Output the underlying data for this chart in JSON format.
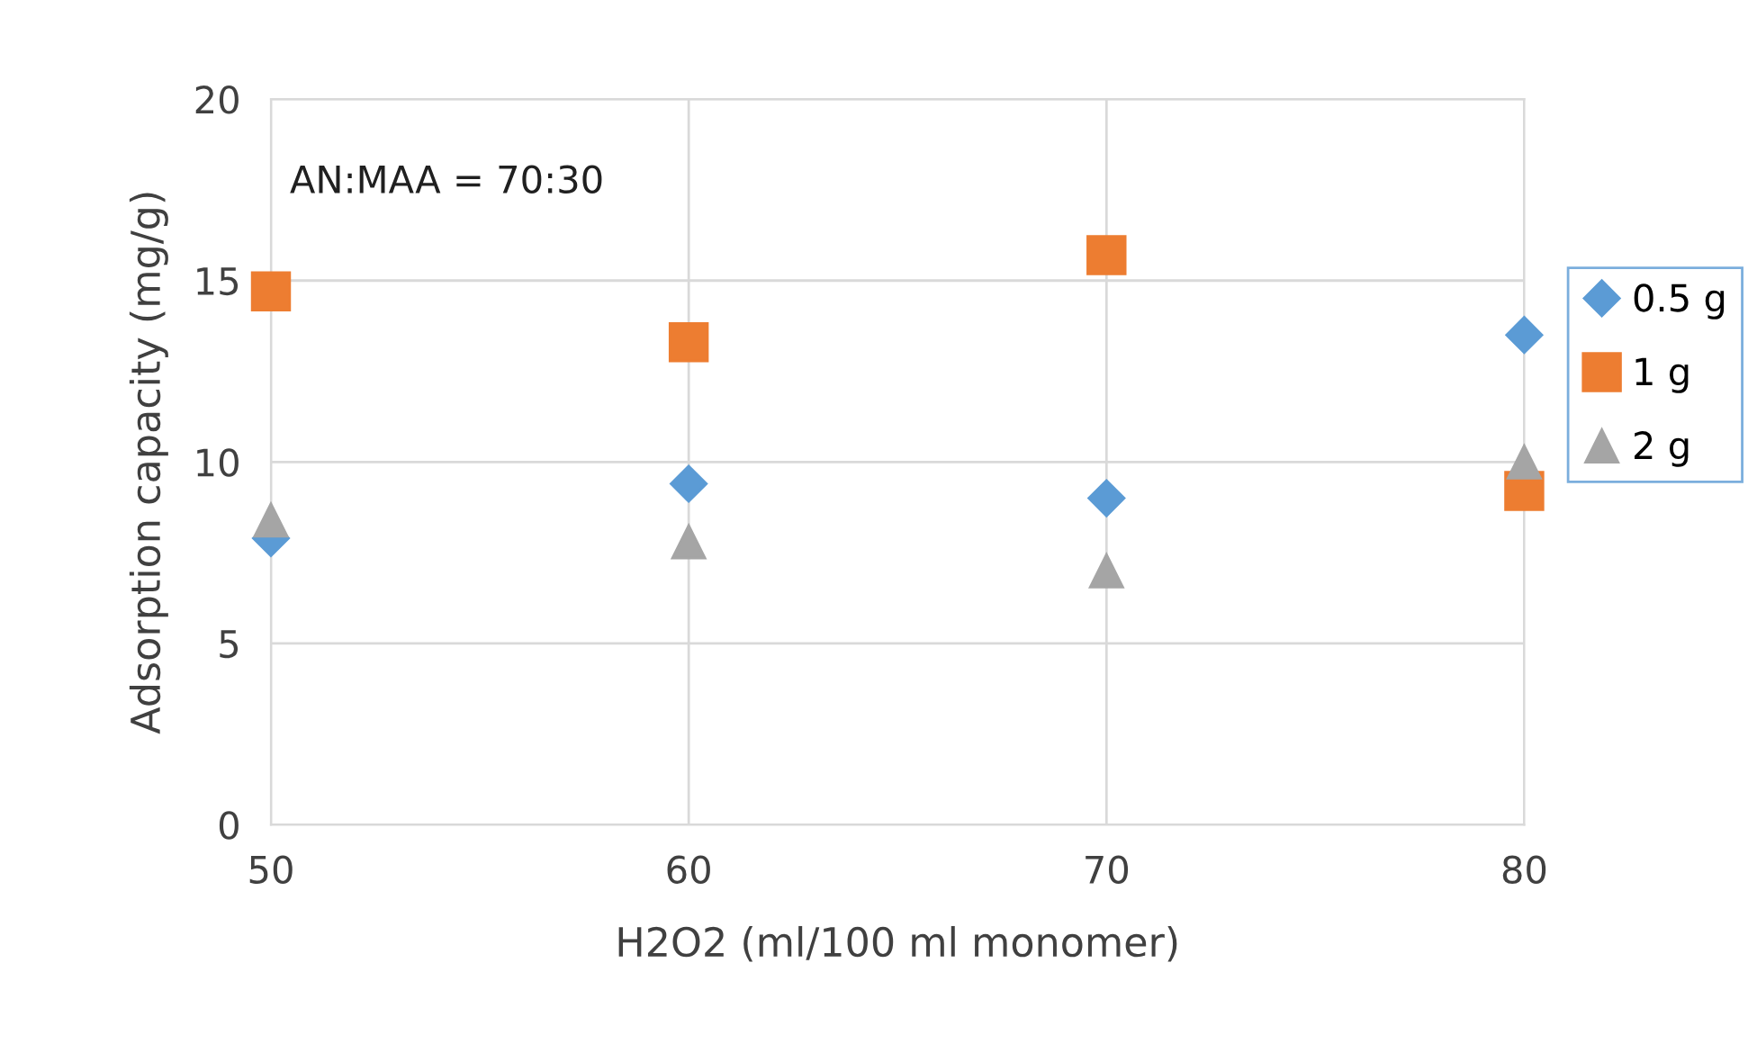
{
  "chart_data": {
    "type": "scatter",
    "xlabel": "H2O2 (ml/100 ml monomer)",
    "ylabel": "Adsorption capacity (mg/g)",
    "x": [
      50,
      60,
      70,
      80
    ],
    "series": [
      {
        "name": "0.5 g",
        "color": "#5b9bd5",
        "marker": "diamond",
        "values": [
          7.9,
          9.4,
          9.0,
          13.5
        ]
      },
      {
        "name": "1 g",
        "color": "#ed7d31",
        "marker": "square",
        "values": [
          14.7,
          13.3,
          15.7,
          9.2
        ]
      },
      {
        "name": "2 g",
        "color": "#a5a5a5",
        "marker": "triangle",
        "values": [
          8.4,
          7.8,
          7.0,
          10.0
        ]
      }
    ],
    "annotations": [
      "AN:MAA = 70:30"
    ],
    "xlim": [
      50,
      80
    ],
    "xticks": [
      50,
      60,
      70,
      80
    ],
    "ylim": [
      0,
      20
    ],
    "yticks": [
      0,
      5,
      10,
      15,
      20
    ],
    "grid": true,
    "legend": "right"
  }
}
